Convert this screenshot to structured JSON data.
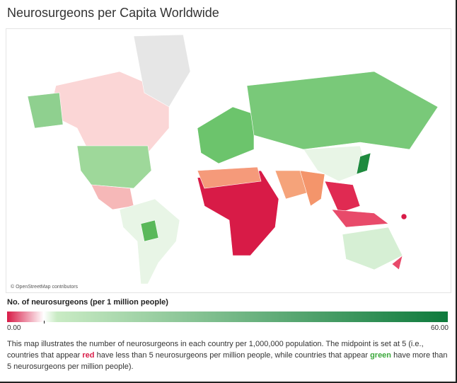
{
  "header": {
    "title": "Neurosurgeons per Capita Worldwide"
  },
  "map": {
    "attribution": "© OpenStreetMap contributors"
  },
  "legend": {
    "title": "No. of neurosurgeons (per 1 million people)",
    "min": {
      "value": 0,
      "label": "0.00"
    },
    "max": {
      "value": 60,
      "label": "60.00"
    },
    "midpoint": 5,
    "low_color": "#d81b47",
    "mid_color": "#ffffff",
    "high_color": "#0e7a3c"
  },
  "description": {
    "parts": [
      "This map illustrates the number of neurosurgeons in each country per 1,000,000 population. The midpoint is set at 5 (i.e., countries that appear ",
      "red",
      " have less than 5 neurosurgeons per million people, while countries that appear ",
      "green",
      " have more than 5 neurosurgeons per million people)."
    ]
  }
}
